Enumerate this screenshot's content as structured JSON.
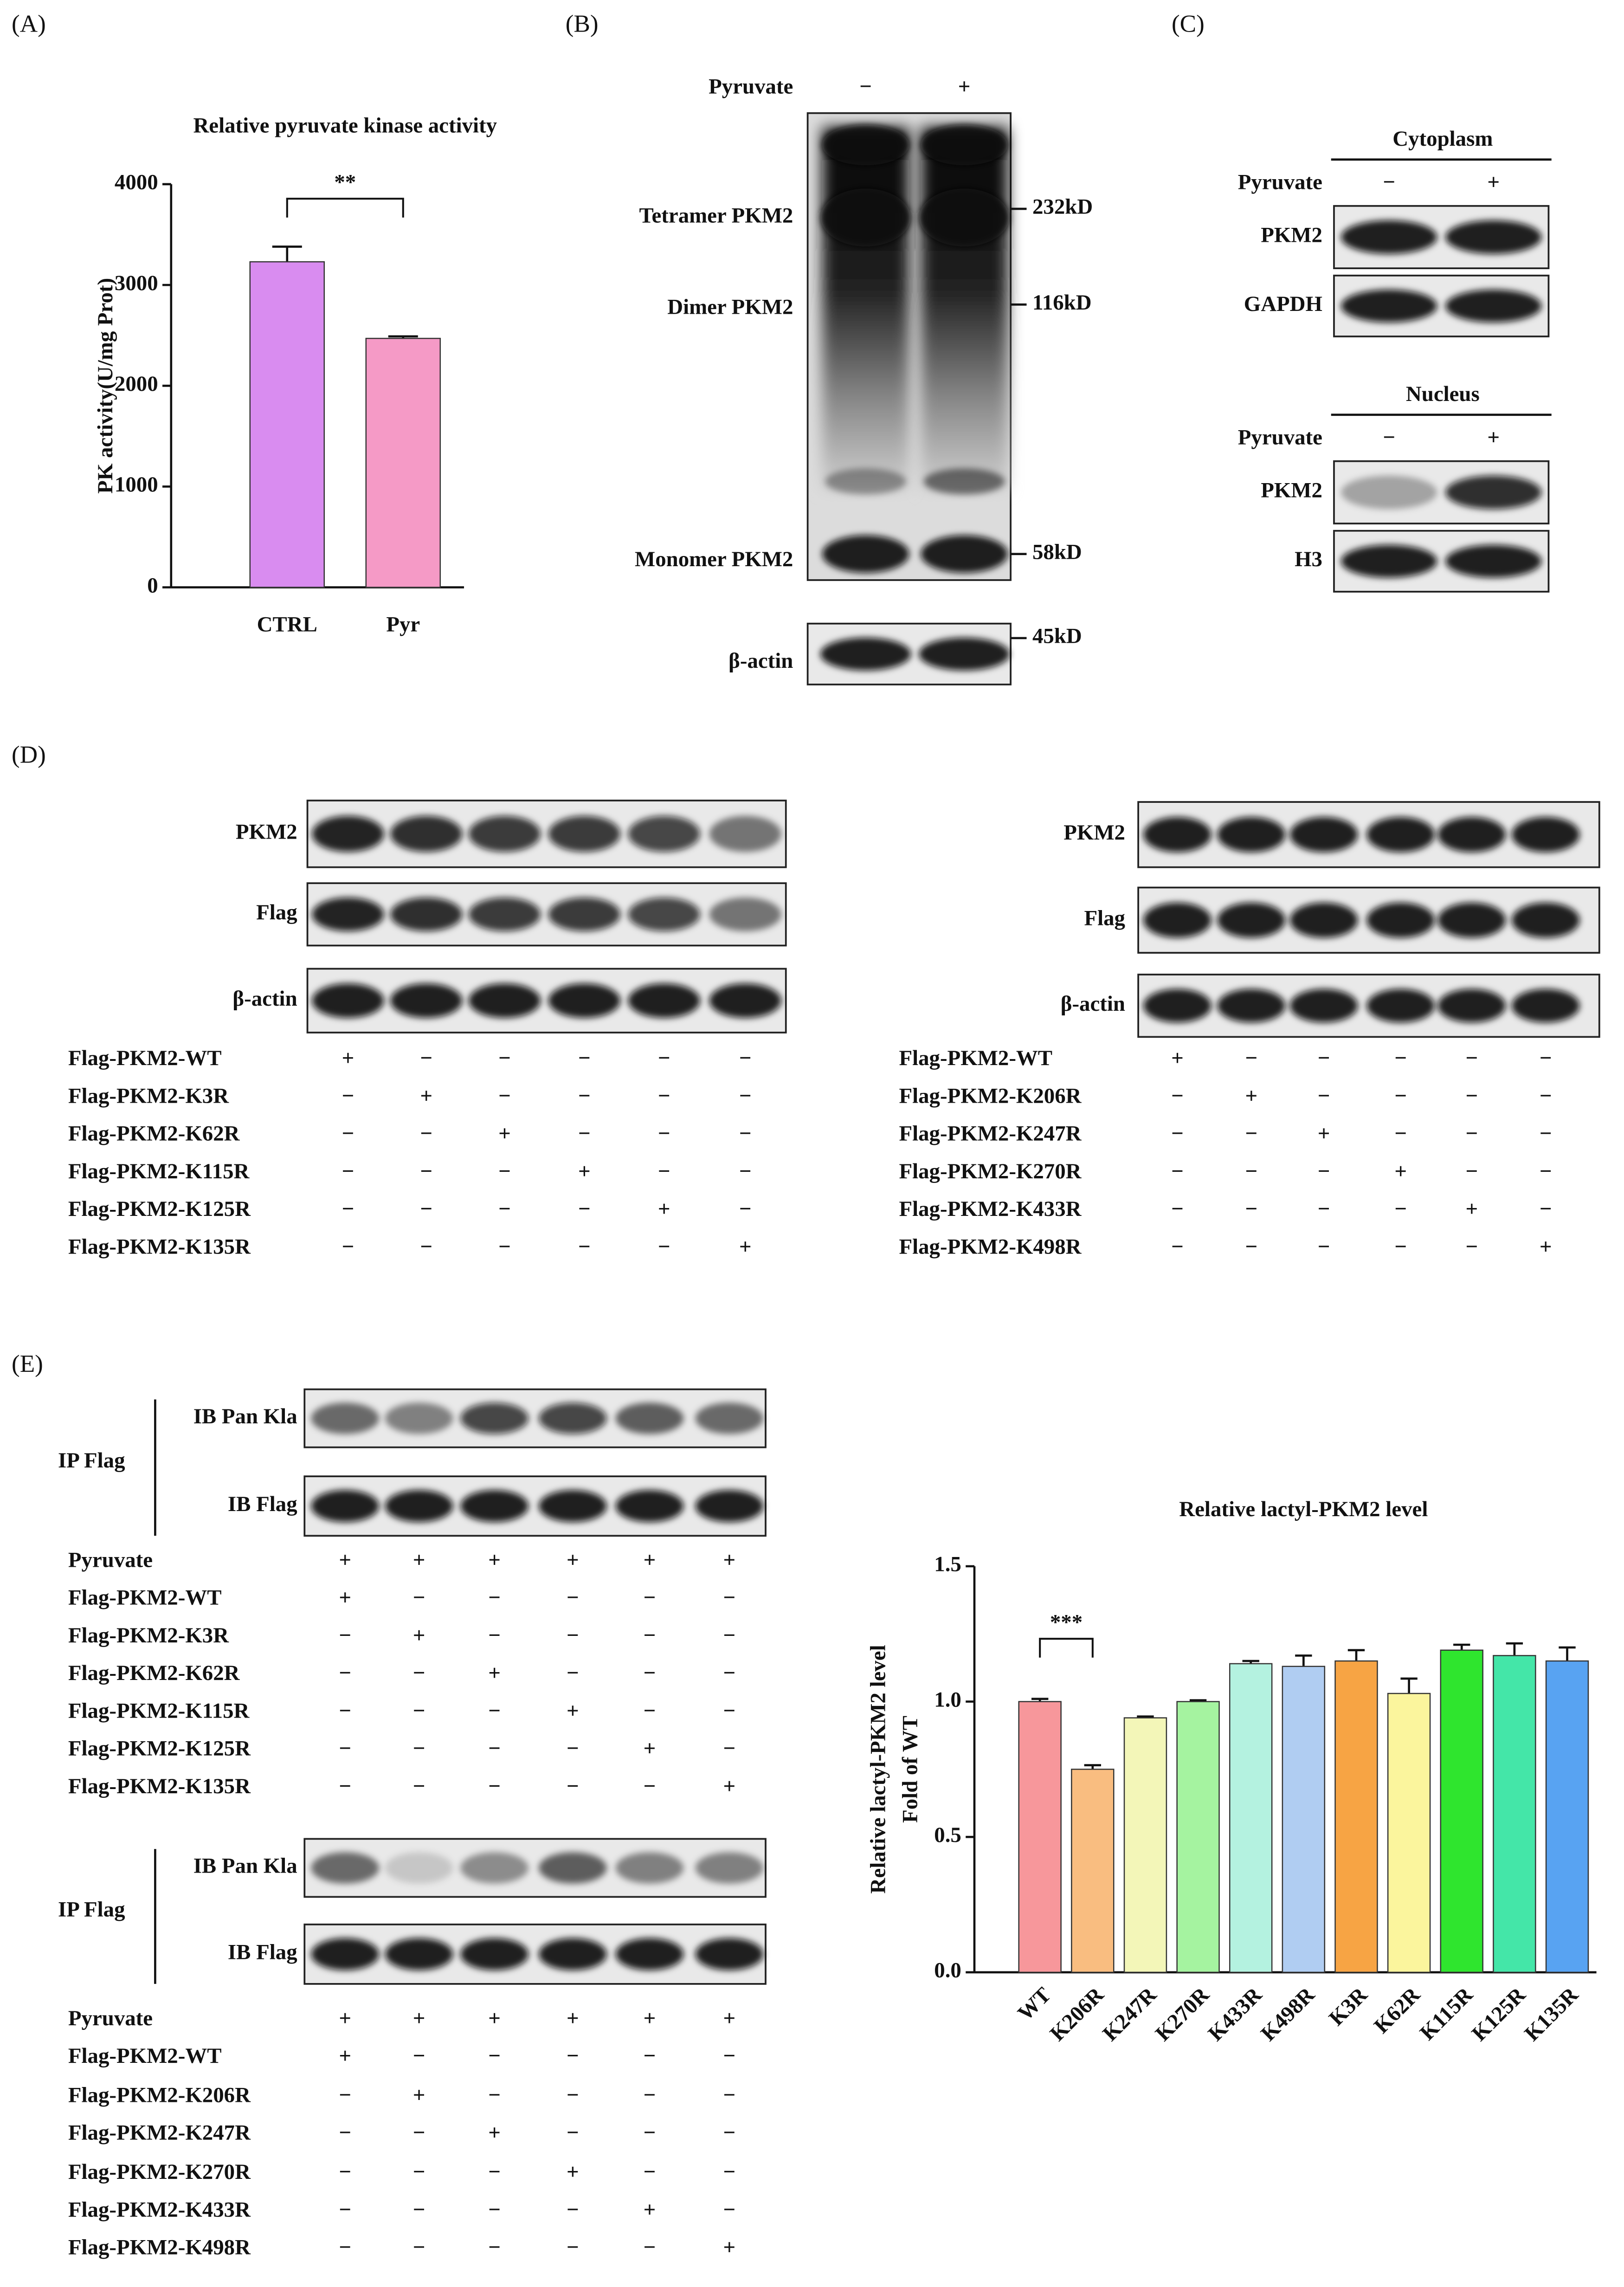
{
  "panel_labels": [
    "(A)",
    "(B)",
    "(C)",
    "(D)",
    "(E)"
  ],
  "chart_data": [
    {
      "type": "bar",
      "title": "Relative pyruvate kinase activity",
      "ylabel": [
        "PK activity(U/mg Prot)"
      ],
      "categories": [
        "CTRL",
        "Pyr"
      ],
      "values": [
        3230,
        2470
      ],
      "errors": [
        150,
        20
      ],
      "colors": [
        "#d98cf0",
        "#f59ac6"
      ],
      "ylim": [
        0,
        4000
      ],
      "yticks": [
        0,
        1000,
        2000,
        3000,
        4000
      ],
      "annotation": "**"
    },
    {
      "type": "bar",
      "title": "Relative lactyl-PKM2 level",
      "ylabel": [
        "Relative lactyl-PKM2 level",
        "Fold of WT"
      ],
      "categories": [
        "WT",
        "K206R",
        "K247R",
        "K270R",
        "K433R",
        "K498R",
        "K3R",
        "K62R",
        "K115R",
        "K125R",
        "K135R"
      ],
      "values": [
        1.0,
        0.75,
        0.94,
        1.0,
        1.14,
        1.13,
        1.15,
        1.03,
        1.19,
        1.17,
        1.15
      ],
      "errors": [
        0.01,
        0.015,
        0.005,
        0.005,
        0.01,
        0.04,
        0.04,
        0.055,
        0.02,
        0.045,
        0.05
      ],
      "colors": [
        "#f7979b",
        "#f9bd80",
        "#f3f6b8",
        "#a5f3a0",
        "#b4f2e0",
        "#b0cdf2",
        "#f7a444",
        "#fbf59d",
        "#2fe52e",
        "#44e6a8",
        "#58a3f2"
      ],
      "ylim": [
        0,
        1.5
      ],
      "yticks": [
        {
          "value": 0,
          "label": "0.0"
        },
        0.5,
        {
          "value": 1,
          "label": "1.0"
        },
        1.5
      ],
      "annotation": "***"
    }
  ],
  "panel_b": {
    "treatment": {
      "label": "Pyruvate",
      "signs": [
        "−",
        "+"
      ]
    },
    "blots": [
      "Tetramer PKM2",
      "Dimer PKM2",
      "Monomer PKM2",
      "β-actin"
    ],
    "markers": [
      "232kD",
      "116kD",
      "58kD",
      "45kD"
    ]
  },
  "panel_c": {
    "cytoplasm": {
      "title": "Cytoplasm",
      "treatment": {
        "label": "Pyruvate",
        "signs": [
          "−",
          "+"
        ]
      },
      "blots": [
        "PKM2",
        "GAPDH"
      ]
    },
    "nucleus": {
      "title": "Nucleus",
      "treatment": {
        "label": "Pyruvate",
        "signs": [
          "−",
          "+"
        ]
      },
      "blots": [
        "PKM2",
        "H3"
      ]
    }
  },
  "panel_d": {
    "left": {
      "blots": [
        "PKM2",
        "Flag",
        "β-actin"
      ],
      "rows": [
        {
          "label": "Flag-PKM2-WT",
          "signs": [
            "+",
            "−",
            "−",
            "−",
            "−",
            "−"
          ]
        },
        {
          "label": "Flag-PKM2-K3R",
          "signs": [
            "−",
            "+",
            "−",
            "−",
            "−",
            "−"
          ]
        },
        {
          "label": "Flag-PKM2-K62R",
          "signs": [
            "−",
            "−",
            "+",
            "−",
            "−",
            "−"
          ]
        },
        {
          "label": "Flag-PKM2-K115R",
          "signs": [
            "−",
            "−",
            "−",
            "+",
            "−",
            "−"
          ]
        },
        {
          "label": "Flag-PKM2-K125R",
          "signs": [
            "−",
            "−",
            "−",
            "−",
            "+",
            "−"
          ]
        },
        {
          "label": "Flag-PKM2-K135R",
          "signs": [
            "−",
            "−",
            "−",
            "−",
            "−",
            "+"
          ]
        }
      ]
    },
    "right": {
      "blots": [
        "PKM2",
        "Flag",
        "β-actin"
      ],
      "rows": [
        {
          "label": "Flag-PKM2-WT",
          "signs": [
            "+",
            "−",
            "−",
            "−",
            "−",
            "−"
          ]
        },
        {
          "label": "Flag-PKM2-K206R",
          "signs": [
            "−",
            "+",
            "−",
            "−",
            "−",
            "−"
          ]
        },
        {
          "label": "Flag-PKM2-K247R",
          "signs": [
            "−",
            "−",
            "+",
            "−",
            "−",
            "−"
          ]
        },
        {
          "label": "Flag-PKM2-K270R",
          "signs": [
            "−",
            "−",
            "−",
            "+",
            "−",
            "−"
          ]
        },
        {
          "label": "Flag-PKM2-K433R",
          "signs": [
            "−",
            "−",
            "−",
            "−",
            "+",
            "−"
          ]
        },
        {
          "label": "Flag-PKM2-K498R",
          "signs": [
            "−",
            "−",
            "−",
            "−",
            "−",
            "+"
          ]
        }
      ]
    }
  },
  "panel_e": {
    "top": {
      "ip": "IP Flag",
      "blots": [
        "IB Pan Kla",
        "IB Flag"
      ],
      "rows": [
        {
          "label": "Pyruvate",
          "signs": [
            "+",
            "+",
            "+",
            "+",
            "+",
            "+"
          ]
        },
        {
          "label": "Flag-PKM2-WT",
          "signs": [
            "+",
            "−",
            "−",
            "−",
            "−",
            "−"
          ]
        },
        {
          "label": "Flag-PKM2-K3R",
          "signs": [
            "−",
            "+",
            "−",
            "−",
            "−",
            "−"
          ]
        },
        {
          "label": "Flag-PKM2-K62R",
          "signs": [
            "−",
            "−",
            "+",
            "−",
            "−",
            "−"
          ]
        },
        {
          "label": "Flag-PKM2-K115R",
          "signs": [
            "−",
            "−",
            "−",
            "+",
            "−",
            "−"
          ]
        },
        {
          "label": "Flag-PKM2-K125R",
          "signs": [
            "−",
            "−",
            "−",
            "−",
            "+",
            "−"
          ]
        },
        {
          "label": "Flag-PKM2-K135R",
          "signs": [
            "−",
            "−",
            "−",
            "−",
            "−",
            "+"
          ]
        }
      ]
    },
    "bottom": {
      "ip": "IP Flag",
      "blots": [
        "IB Pan Kla",
        "IB Flag"
      ],
      "rows": [
        {
          "label": "Pyruvate",
          "signs": [
            "+",
            "+",
            "+",
            "+",
            "+",
            "+"
          ]
        },
        {
          "label": "Flag-PKM2-WT",
          "signs": [
            "+",
            "−",
            "−",
            "−",
            "−",
            "−"
          ]
        },
        {
          "label": "Flag-PKM2-K206R",
          "signs": [
            "−",
            "+",
            "−",
            "−",
            "−",
            "−"
          ]
        },
        {
          "label": "Flag-PKM2-K247R",
          "signs": [
            "−",
            "−",
            "+",
            "−",
            "−",
            "−"
          ]
        },
        {
          "label": "Flag-PKM2-K270R",
          "signs": [
            "−",
            "−",
            "−",
            "+",
            "−",
            "−"
          ]
        },
        {
          "label": "Flag-PKM2-K433R",
          "signs": [
            "−",
            "−",
            "−",
            "−",
            "+",
            "−"
          ]
        },
        {
          "label": "Flag-PKM2-K498R",
          "signs": [
            "−",
            "−",
            "−",
            "−",
            "−",
            "+"
          ]
        }
      ]
    }
  }
}
